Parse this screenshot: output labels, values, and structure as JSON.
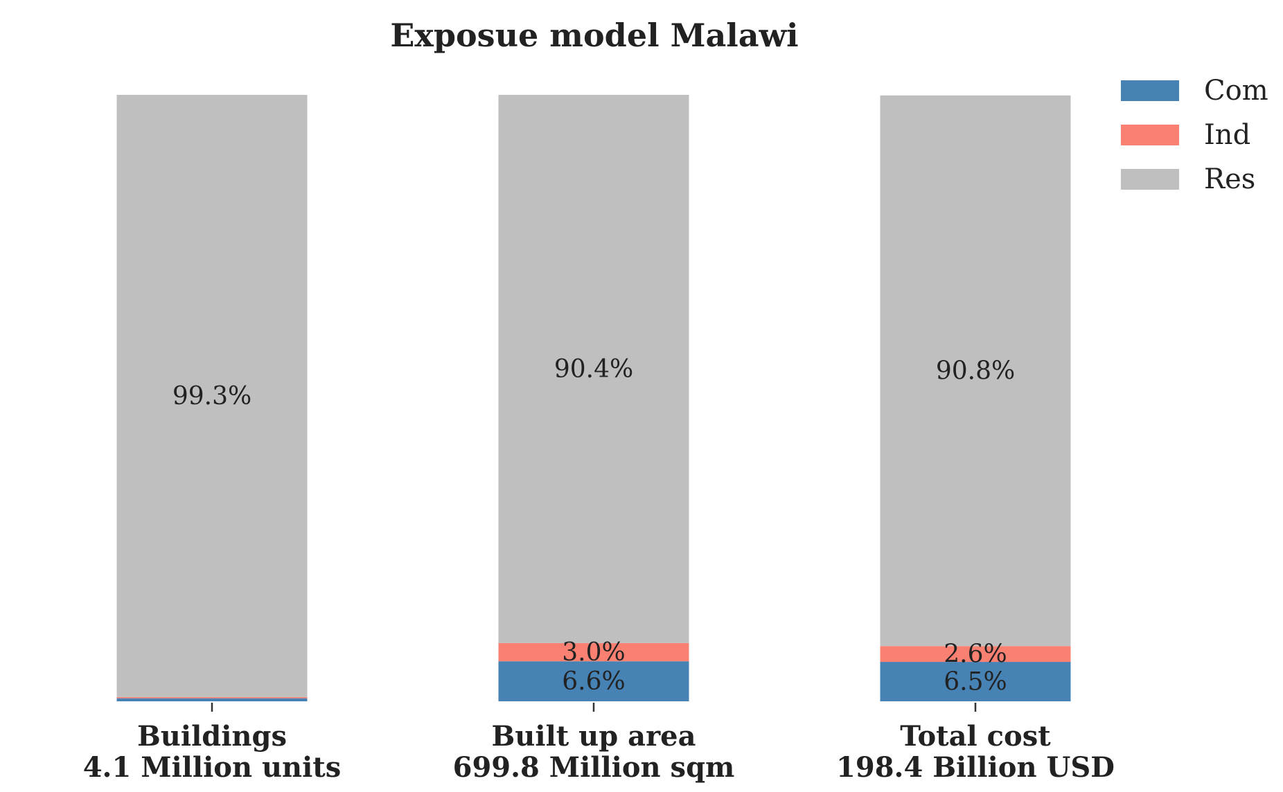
{
  "chart_data": {
    "type": "bar",
    "stacked": true,
    "normalized": true,
    "title": "Exposue model Malawi",
    "categories": [
      [
        "Buildings",
        "4.1 Million units"
      ],
      [
        "Built up area",
        "699.8 Million sqm"
      ],
      [
        "Total cost",
        "198.4 Billion USD"
      ]
    ],
    "series": [
      {
        "name": "Com",
        "color": "#4682b4",
        "values": [
          0.5,
          6.6,
          6.5
        ],
        "labels": [
          "",
          "6.6%",
          "6.5%"
        ]
      },
      {
        "name": "Ind",
        "color": "#fa8072",
        "values": [
          0.2,
          3.0,
          2.6
        ],
        "labels": [
          "",
          "3.0%",
          "2.6%"
        ]
      },
      {
        "name": "Res",
        "color": "#bfbfbf",
        "values": [
          99.3,
          90.4,
          90.8
        ],
        "labels": [
          "99.3%",
          "90.4%",
          "90.8%"
        ]
      }
    ],
    "ylim": [
      0,
      100
    ],
    "xlabel": "",
    "ylabel": "",
    "grid": false,
    "legend_position": "top-right"
  }
}
